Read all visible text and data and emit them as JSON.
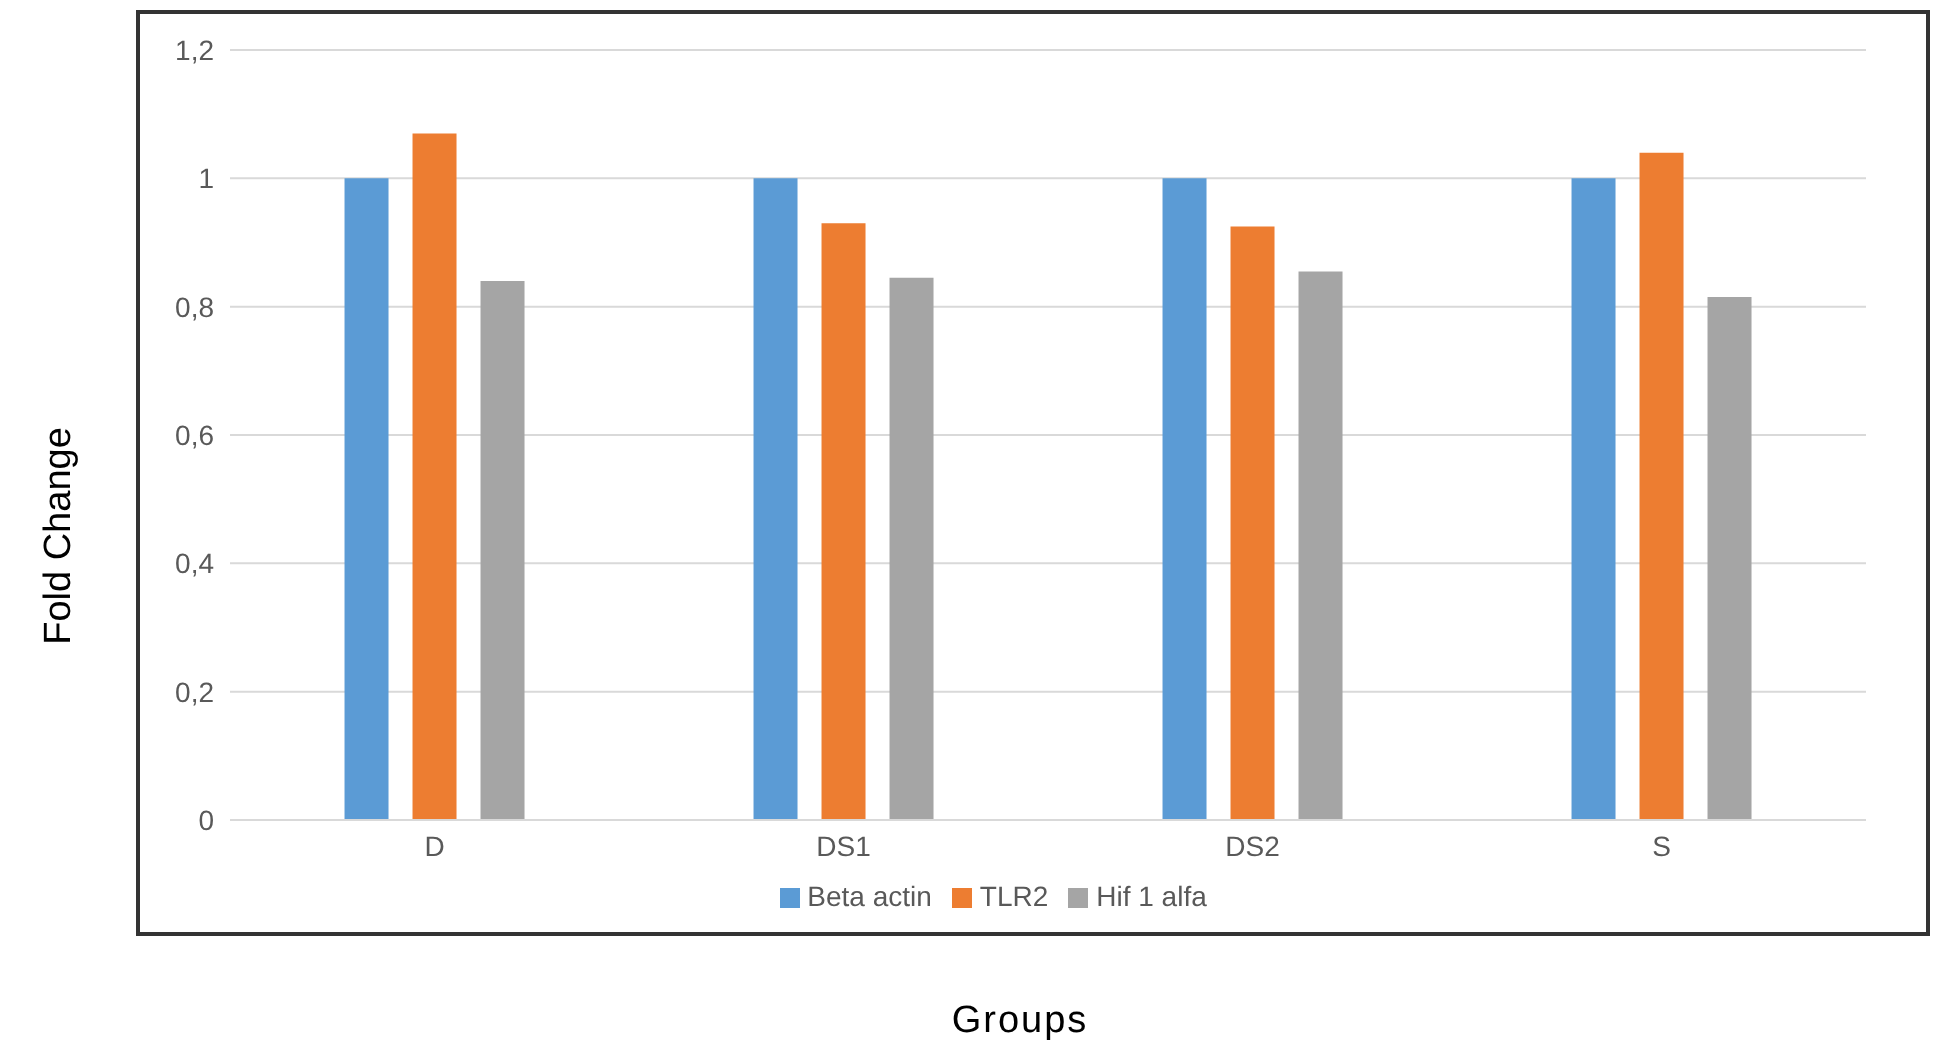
{
  "chart_data": {
    "type": "bar",
    "xlabel": "Groups",
    "ylabel": "Fold Change",
    "categories": [
      "D",
      "DS1",
      "DS2",
      "S"
    ],
    "series": [
      {
        "name": "Beta actin",
        "color": "#5b9bd5",
        "values": [
          1,
          1,
          1,
          1
        ]
      },
      {
        "name": "TLR2",
        "color": "#ed7d31",
        "values": [
          1.07,
          0.93,
          0.925,
          1.04
        ]
      },
      {
        "name": "Hif 1 alfa",
        "color": "#a5a5a5",
        "values": [
          0.84,
          0.845,
          0.855,
          0.815
        ]
      }
    ],
    "ylim": [
      0,
      1.2
    ],
    "yticks": [
      0,
      {
        "value": 0.2,
        "label": "0,2"
      },
      {
        "value": 0.4,
        "label": "0,4"
      },
      {
        "value": 0.6,
        "label": "0,6"
      },
      {
        "value": 0.8,
        "label": "0,8"
      },
      1,
      {
        "value": 1.2,
        "label": "1,2"
      }
    ],
    "grid": "y",
    "legend": "bottom"
  }
}
